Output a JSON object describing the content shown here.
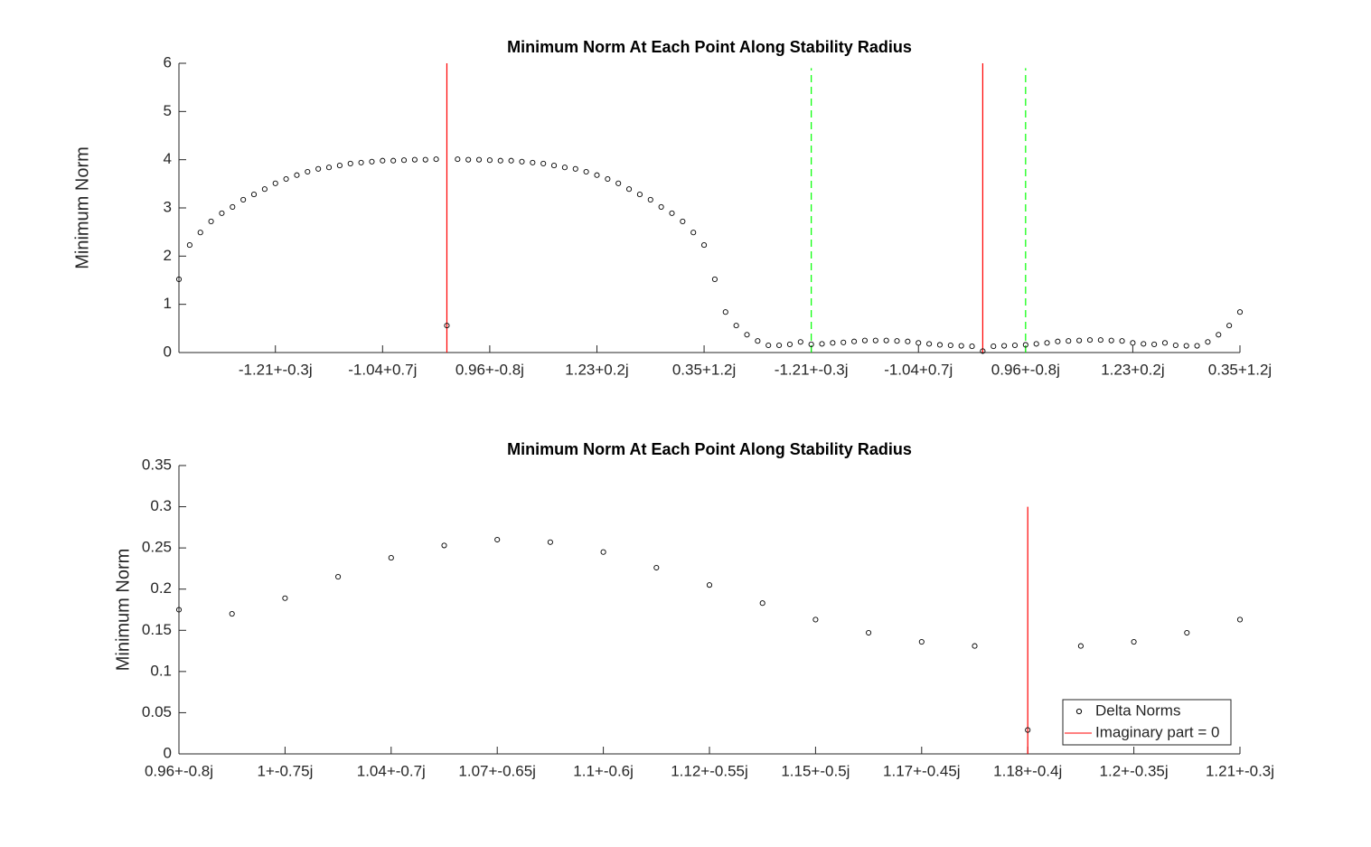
{
  "chart_data": [
    {
      "type": "scatter",
      "title": "Minimum Norm At Each Point Along Stability Radius",
      "y_label": "Minimum Norm",
      "x": [
        1,
        2,
        3,
        4,
        5,
        6,
        7,
        8,
        9,
        10,
        11,
        12,
        13,
        14,
        15,
        16,
        17,
        18,
        19,
        20,
        21,
        22,
        23,
        24,
        25,
        26,
        27,
        28,
        29,
        30,
        31,
        32,
        33,
        34,
        35,
        36,
        37,
        38,
        39,
        40,
        41,
        42,
        43,
        44,
        45,
        46,
        47,
        48,
        49,
        50,
        51,
        52,
        53,
        54,
        55,
        56,
        57,
        58,
        59,
        60,
        61,
        62,
        63,
        64,
        65,
        66,
        67,
        68,
        69,
        70,
        71,
        72,
        73,
        74,
        75,
        76,
        77,
        78,
        79,
        80,
        81,
        82,
        83,
        84,
        85,
        86,
        87,
        88,
        89,
        90,
        91,
        92,
        93,
        94,
        95,
        96,
        97,
        98,
        99,
        100
      ],
      "series": [
        {
          "color": "#000000",
          "values": [
            1.52,
            2.23,
            2.49,
            2.72,
            2.89,
            3.02,
            3.17,
            3.28,
            3.39,
            3.51,
            3.6,
            3.68,
            3.75,
            3.81,
            3.84,
            3.88,
            3.92,
            3.94,
            3.96,
            3.98,
            3.98,
            3.99,
            4.0,
            4.0,
            4.01,
            0.56,
            4.01,
            4.0,
            4.0,
            3.99,
            3.98,
            3.98,
            3.96,
            3.94,
            3.92,
            3.88,
            3.84,
            3.81,
            3.75,
            3.68,
            3.6,
            3.51,
            3.39,
            3.28,
            3.17,
            3.02,
            2.89,
            2.72,
            2.49,
            2.23,
            1.52,
            0.84,
            0.56,
            0.37,
            0.24,
            0.15,
            0.15,
            0.17,
            0.22,
            0.17,
            0.18,
            0.2,
            0.21,
            0.23,
            0.25,
            0.25,
            0.25,
            0.24,
            0.23,
            0.2,
            0.18,
            0.16,
            0.15,
            0.14,
            0.13,
            0.03,
            0.13,
            0.14,
            0.15,
            0.16,
            0.18,
            0.2,
            0.23,
            0.24,
            0.25,
            0.26,
            0.26,
            0.25,
            0.24,
            0.2,
            0.18,
            0.17,
            0.2,
            0.15,
            0.14,
            0.14,
            0.22,
            0.37,
            0.56,
            0.84
          ]
        }
      ],
      "vlines": [
        {
          "x": 26,
          "y": [
            0,
            6
          ],
          "color": "#ff0000",
          "dashed": false
        },
        {
          "x": 76,
          "y": [
            0,
            6
          ],
          "color": "#ff0000",
          "dashed": false
        },
        {
          "x": 60,
          "y": [
            0,
            5.9
          ],
          "color": "#00ff00",
          "dashed": true
        },
        {
          "x": 80,
          "y": [
            0,
            5.9
          ],
          "color": "#00ff00",
          "dashed": true
        }
      ],
      "xlim": [
        1,
        100
      ],
      "xticks": [
        {
          "value": 10,
          "label": "-1.21+-0.3j"
        },
        {
          "value": 20,
          "label": "-1.04+0.7j"
        },
        {
          "value": 30,
          "label": "0.96+-0.8j"
        },
        {
          "value": 40,
          "label": "1.23+0.2j"
        },
        {
          "value": 50,
          "label": "0.35+1.2j"
        },
        {
          "value": 60,
          "label": "-1.21+-0.3j"
        },
        {
          "value": 70,
          "label": "-1.04+0.7j"
        },
        {
          "value": 80,
          "label": "0.96+-0.8j"
        },
        {
          "value": 90,
          "label": "1.23+0.2j"
        },
        {
          "value": 100,
          "label": "0.35+1.2j"
        }
      ],
      "ylim": [
        0,
        6
      ],
      "yticks": [
        0,
        1,
        2,
        3,
        4,
        5,
        6
      ]
    },
    {
      "type": "scatter",
      "title": "Minimum Norm At Each Point Along Stability Radius",
      "y_label": "Minimum Norm",
      "x": [
        1,
        2,
        3,
        4,
        5,
        6,
        7,
        8,
        9,
        10,
        11,
        12,
        13,
        14,
        15,
        16,
        17,
        18,
        19,
        20,
        21
      ],
      "series": [
        {
          "name": "Delta Norms",
          "color": "#000000",
          "values": [
            0.175,
            0.17,
            0.189,
            0.215,
            0.238,
            0.253,
            0.26,
            0.257,
            0.245,
            0.226,
            0.205,
            0.183,
            0.163,
            0.147,
            0.136,
            0.131,
            0.029,
            0.131,
            0.136,
            0.147,
            0.163
          ]
        }
      ],
      "vlines": [
        {
          "name": "Imaginary part = 0",
          "x": 17,
          "y": [
            0,
            0.3
          ],
          "color": "#ff0000",
          "dashed": false
        }
      ],
      "xlim": [
        1,
        21
      ],
      "xticks": [
        {
          "value": 1,
          "label": "0.96+-0.8j"
        },
        {
          "value": 3,
          "label": "1+-0.75j"
        },
        {
          "value": 5,
          "label": "1.04+-0.7j"
        },
        {
          "value": 7,
          "label": "1.07+-0.65j"
        },
        {
          "value": 9,
          "label": "1.1+-0.6j"
        },
        {
          "value": 11,
          "label": "1.12+-0.55j"
        },
        {
          "value": 13,
          "label": "1.15+-0.5j"
        },
        {
          "value": 15,
          "label": "1.17+-0.45j"
        },
        {
          "value": 17,
          "label": "1.18+-0.4j"
        },
        {
          "value": 19,
          "label": "1.2+-0.35j"
        },
        {
          "value": 21,
          "label": "1.21+-0.3j"
        }
      ],
      "ylim": [
        0,
        0.35
      ],
      "yticks": [
        0,
        0.05,
        0.1,
        0.15,
        0.2,
        0.25,
        0.3,
        0.35
      ],
      "legend": "lower right"
    }
  ]
}
